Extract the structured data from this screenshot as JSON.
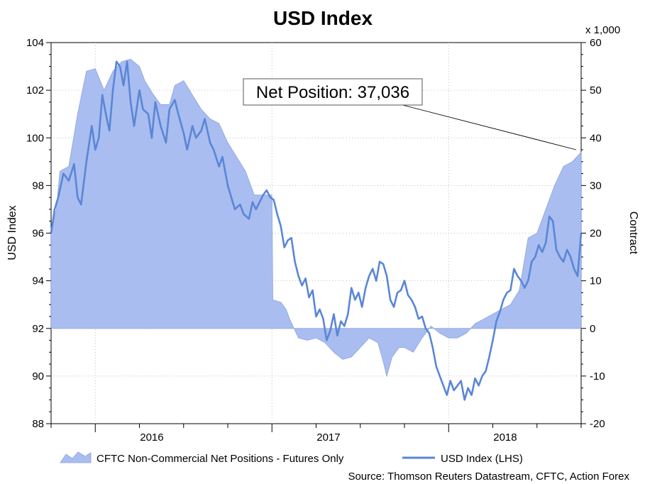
{
  "chart_data": {
    "type": "area",
    "title": "USD Index",
    "y_left": {
      "label": "USD Index",
      "min": 88,
      "max": 104,
      "ticks": [
        88,
        90,
        92,
        94,
        96,
        98,
        100,
        102,
        104
      ]
    },
    "y_right": {
      "label": "Contract",
      "multiplier_label": "x 1,000",
      "min": -20,
      "max": 60,
      "ticks": [
        -20,
        -10,
        0,
        10,
        20,
        30,
        40,
        50,
        60
      ]
    },
    "x_axis": {
      "start": 2015.75,
      "end": 2018.75,
      "year_labels": [
        "2016",
        "2017",
        "2018"
      ]
    },
    "grid": true,
    "legend_position": "bottom",
    "callout": "Net Position: 37,036",
    "source": "Source: Thomson Reuters Datastream, CFTC, Action Forex",
    "colors": {
      "area": "#a9bdf0",
      "area_edge": "#8aa2e0",
      "line": "#5a86d6",
      "grid": "#b0b0b0"
    },
    "series": [
      {
        "name": "CFTC Non-Commercial Net Positions - Futures Only",
        "axis": "right",
        "kind": "area",
        "points": [
          [
            2015.75,
            20
          ],
          [
            2015.78,
            25
          ],
          [
            2015.8,
            33
          ],
          [
            2015.85,
            34
          ],
          [
            2015.9,
            45
          ],
          [
            2015.95,
            54
          ],
          [
            2016.0,
            54.5
          ],
          [
            2016.05,
            50
          ],
          [
            2016.1,
            54
          ],
          [
            2016.15,
            56
          ],
          [
            2016.2,
            56.5
          ],
          [
            2016.25,
            55
          ],
          [
            2016.28,
            52
          ],
          [
            2016.33,
            49
          ],
          [
            2016.37,
            47
          ],
          [
            2016.42,
            47
          ],
          [
            2016.45,
            51
          ],
          [
            2016.5,
            52
          ],
          [
            2016.55,
            49
          ],
          [
            2016.6,
            46
          ],
          [
            2016.65,
            44
          ],
          [
            2016.7,
            43
          ],
          [
            2016.75,
            39
          ],
          [
            2016.8,
            36
          ],
          [
            2016.85,
            33
          ],
          [
            2016.9,
            28
          ],
          [
            2016.93,
            28
          ],
          [
            2016.97,
            28
          ],
          [
            2017.0,
            28
          ],
          [
            2017.005,
            6
          ],
          [
            2017.05,
            5.5
          ],
          [
            2017.08,
            4
          ],
          [
            2017.1,
            2
          ],
          [
            2017.15,
            -2
          ],
          [
            2017.2,
            -2.5
          ],
          [
            2017.25,
            -2
          ],
          [
            2017.3,
            -3
          ],
          [
            2017.35,
            -5
          ],
          [
            2017.4,
            -6.5
          ],
          [
            2017.45,
            -6
          ],
          [
            2017.5,
            -4
          ],
          [
            2017.55,
            -2
          ],
          [
            2017.6,
            -3
          ],
          [
            2017.63,
            -7
          ],
          [
            2017.65,
            -10
          ],
          [
            2017.68,
            -6
          ],
          [
            2017.72,
            -4
          ],
          [
            2017.75,
            -4
          ],
          [
            2017.8,
            -5
          ],
          [
            2017.85,
            -2
          ],
          [
            2017.9,
            0.5
          ],
          [
            2017.95,
            -1
          ],
          [
            2018.0,
            -2
          ],
          [
            2018.05,
            -2
          ],
          [
            2018.1,
            -1
          ],
          [
            2018.15,
            1
          ],
          [
            2018.2,
            2
          ],
          [
            2018.25,
            3
          ],
          [
            2018.3,
            4
          ],
          [
            2018.35,
            5
          ],
          [
            2018.4,
            8
          ],
          [
            2018.45,
            19
          ],
          [
            2018.5,
            20
          ],
          [
            2018.55,
            25
          ],
          [
            2018.6,
            30
          ],
          [
            2018.65,
            34
          ],
          [
            2018.7,
            35
          ],
          [
            2018.75,
            37
          ]
        ]
      },
      {
        "name": "USD Index (LHS)",
        "axis": "left",
        "kind": "line",
        "points": [
          [
            2015.75,
            96.0
          ],
          [
            2015.77,
            97.0
          ],
          [
            2015.79,
            97.5
          ],
          [
            2015.82,
            98.5
          ],
          [
            2015.85,
            98.2
          ],
          [
            2015.88,
            98.9
          ],
          [
            2015.9,
            97.5
          ],
          [
            2015.92,
            97.2
          ],
          [
            2015.95,
            99.0
          ],
          [
            2015.98,
            100.5
          ],
          [
            2016.0,
            99.5
          ],
          [
            2016.02,
            100.0
          ],
          [
            2016.04,
            101.8
          ],
          [
            2016.06,
            101.0
          ],
          [
            2016.08,
            100.3
          ],
          [
            2016.1,
            102.0
          ],
          [
            2016.12,
            103.2
          ],
          [
            2016.14,
            103.0
          ],
          [
            2016.16,
            102.2
          ],
          [
            2016.18,
            103.2
          ],
          [
            2016.2,
            101.5
          ],
          [
            2016.22,
            100.5
          ],
          [
            2016.25,
            102.0
          ],
          [
            2016.27,
            101.2
          ],
          [
            2016.3,
            101.0
          ],
          [
            2016.32,
            100.0
          ],
          [
            2016.34,
            101.5
          ],
          [
            2016.37,
            100.5
          ],
          [
            2016.4,
            99.8
          ],
          [
            2016.42,
            101.2
          ],
          [
            2016.45,
            101.6
          ],
          [
            2016.47,
            101.0
          ],
          [
            2016.5,
            100.2
          ],
          [
            2016.52,
            99.5
          ],
          [
            2016.55,
            100.5
          ],
          [
            2016.57,
            100.0
          ],
          [
            2016.6,
            100.3
          ],
          [
            2016.62,
            100.8
          ],
          [
            2016.65,
            99.8
          ],
          [
            2016.67,
            99.5
          ],
          [
            2016.7,
            98.8
          ],
          [
            2016.72,
            99.2
          ],
          [
            2016.75,
            98.0
          ],
          [
            2016.77,
            97.5
          ],
          [
            2016.79,
            97.0
          ],
          [
            2016.82,
            97.2
          ],
          [
            2016.84,
            96.8
          ],
          [
            2016.87,
            96.6
          ],
          [
            2016.89,
            97.3
          ],
          [
            2016.91,
            97.0
          ],
          [
            2016.93,
            97.3
          ],
          [
            2016.95,
            97.6
          ],
          [
            2016.97,
            97.8
          ],
          [
            2016.99,
            97.5
          ],
          [
            2017.01,
            97.4
          ],
          [
            2017.03,
            96.8
          ],
          [
            2017.05,
            96.3
          ],
          [
            2017.07,
            95.4
          ],
          [
            2017.09,
            95.7
          ],
          [
            2017.11,
            95.8
          ],
          [
            2017.13,
            94.8
          ],
          [
            2017.15,
            94.2
          ],
          [
            2017.17,
            93.8
          ],
          [
            2017.19,
            94.1
          ],
          [
            2017.21,
            93.3
          ],
          [
            2017.23,
            93.6
          ],
          [
            2017.25,
            92.5
          ],
          [
            2017.27,
            92.8
          ],
          [
            2017.29,
            92.4
          ],
          [
            2017.31,
            91.5
          ],
          [
            2017.33,
            91.9
          ],
          [
            2017.35,
            92.6
          ],
          [
            2017.37,
            91.7
          ],
          [
            2017.39,
            92.3
          ],
          [
            2017.41,
            92.1
          ],
          [
            2017.43,
            92.6
          ],
          [
            2017.45,
            93.7
          ],
          [
            2017.47,
            93.2
          ],
          [
            2017.49,
            93.5
          ],
          [
            2017.51,
            92.9
          ],
          [
            2017.53,
            93.7
          ],
          [
            2017.55,
            94.2
          ],
          [
            2017.57,
            94.5
          ],
          [
            2017.59,
            94.0
          ],
          [
            2017.61,
            94.8
          ],
          [
            2017.63,
            94.7
          ],
          [
            2017.65,
            94.2
          ],
          [
            2017.67,
            93.2
          ],
          [
            2017.69,
            92.9
          ],
          [
            2017.71,
            93.5
          ],
          [
            2017.73,
            93.6
          ],
          [
            2017.75,
            94.0
          ],
          [
            2017.77,
            93.4
          ],
          [
            2017.79,
            93.2
          ],
          [
            2017.81,
            92.9
          ],
          [
            2017.83,
            92.4
          ],
          [
            2017.85,
            92.5
          ],
          [
            2017.87,
            92.0
          ],
          [
            2017.89,
            91.8
          ],
          [
            2017.91,
            91.2
          ],
          [
            2017.93,
            90.4
          ],
          [
            2017.95,
            90.0
          ],
          [
            2017.97,
            89.6
          ],
          [
            2017.99,
            89.2
          ],
          [
            2018.01,
            89.8
          ],
          [
            2018.03,
            89.4
          ],
          [
            2018.05,
            89.6
          ],
          [
            2018.07,
            89.8
          ],
          [
            2018.09,
            89.0
          ],
          [
            2018.11,
            89.5
          ],
          [
            2018.13,
            89.2
          ],
          [
            2018.15,
            89.9
          ],
          [
            2018.17,
            89.6
          ],
          [
            2018.19,
            90.0
          ],
          [
            2018.21,
            90.2
          ],
          [
            2018.23,
            90.8
          ],
          [
            2018.25,
            91.5
          ],
          [
            2018.27,
            92.3
          ],
          [
            2018.29,
            92.7
          ],
          [
            2018.31,
            93.2
          ],
          [
            2018.33,
            93.5
          ],
          [
            2018.35,
            93.6
          ],
          [
            2018.37,
            94.5
          ],
          [
            2018.39,
            94.2
          ],
          [
            2018.41,
            94.0
          ],
          [
            2018.43,
            93.7
          ],
          [
            2018.45,
            94.0
          ],
          [
            2018.47,
            94.8
          ],
          [
            2018.49,
            95.0
          ],
          [
            2018.51,
            95.5
          ],
          [
            2018.53,
            95.2
          ],
          [
            2018.55,
            95.6
          ],
          [
            2018.57,
            96.7
          ],
          [
            2018.59,
            96.5
          ],
          [
            2018.61,
            95.3
          ],
          [
            2018.63,
            95.0
          ],
          [
            2018.65,
            94.8
          ],
          [
            2018.67,
            95.3
          ],
          [
            2018.69,
            95.0
          ],
          [
            2018.71,
            94.5
          ],
          [
            2018.73,
            94.2
          ],
          [
            2018.75,
            96.0
          ]
        ]
      }
    ]
  }
}
